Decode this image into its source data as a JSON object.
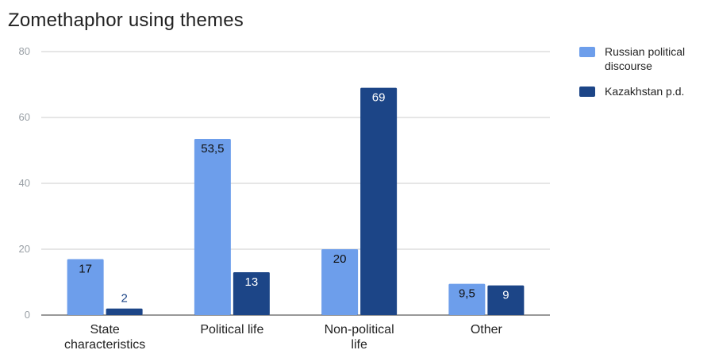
{
  "chart_data": {
    "type": "bar",
    "title": "Zomethaphor using themes",
    "xlabel": "",
    "ylabel": "",
    "ylim": [
      0,
      80
    ],
    "yticks": [
      0,
      20,
      40,
      60,
      80
    ],
    "grid": true,
    "legend_position": "right",
    "categories": [
      [
        "State",
        "characteristics"
      ],
      [
        "Political life"
      ],
      [
        "Non-political",
        "life"
      ],
      [
        "Other"
      ]
    ],
    "series": [
      {
        "name": [
          "Russian political",
          "discourse"
        ],
        "color": "#6d9eeb",
        "values": [
          17,
          53.5,
          20,
          9.5
        ],
        "labels": [
          "17",
          "53,5",
          "20",
          "9,5"
        ]
      },
      {
        "name": [
          "Kazakhstan p.d."
        ],
        "color": "#1c4587",
        "values": [
          2,
          13,
          69,
          9
        ],
        "labels": [
          "2",
          "13",
          "69",
          "9"
        ]
      }
    ]
  }
}
